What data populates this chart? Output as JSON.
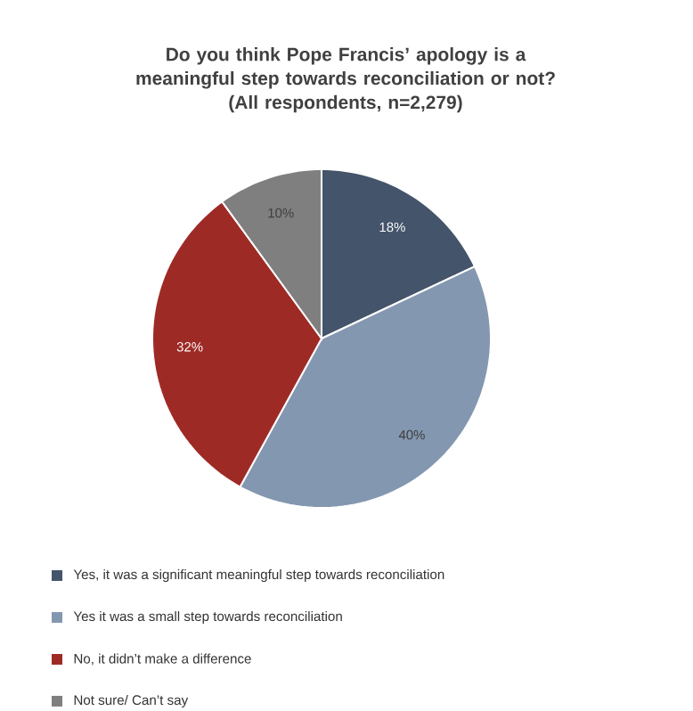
{
  "chart_data": {
    "type": "pie",
    "title": "Do you think Pope Francis’ apology is a meaningful step towards reconciliation or not?",
    "subtitle": "(All respondents, n=2,279)",
    "categories": [
      "Yes, it was a significant meaningful step towards reconciliation",
      "Yes it was a small step towards reconciliation",
      "No, it didn’t make a difference",
      "Not sure/ Can’t say"
    ],
    "values": [
      18,
      40,
      32,
      10
    ],
    "value_labels": [
      "18%",
      "40%",
      "32%",
      "10%"
    ],
    "colors": [
      "#44546a",
      "#8497b0",
      "#9e2a26",
      "#7f7f7f"
    ],
    "legend": "bottom"
  }
}
